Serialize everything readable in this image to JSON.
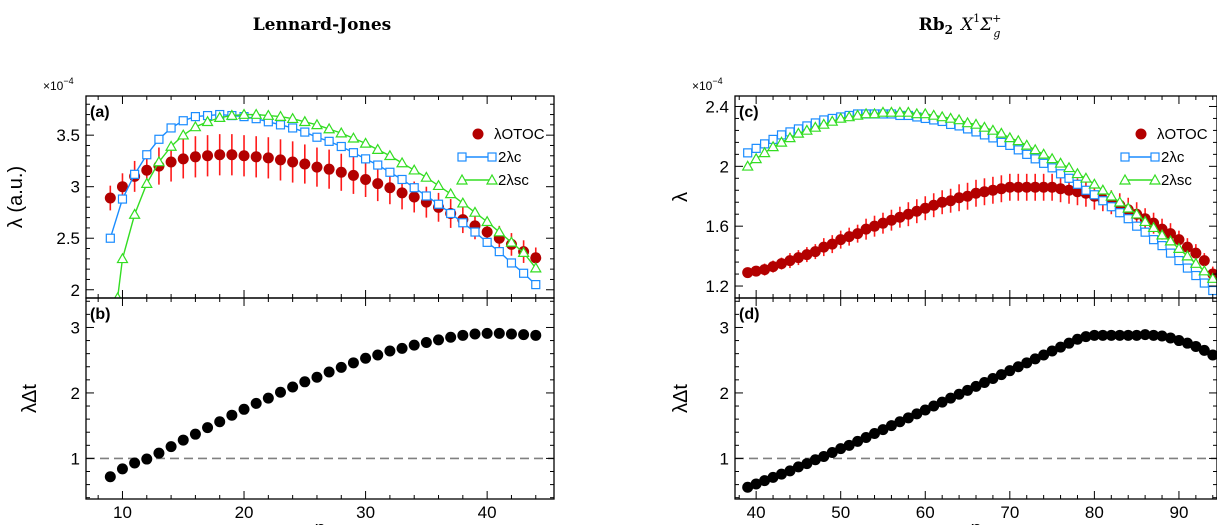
{
  "colors": {
    "otoc_fill": "#b30000",
    "otoc_err": "#ff1a1a",
    "lc": "#1a8cff",
    "lsc": "#33dd22",
    "ldt": "#000000",
    "ref": "#808080"
  },
  "chart_data": [
    {
      "id": "a",
      "type": "scatter",
      "panel_label": "(a)",
      "figure_title": "Lennard-Jones",
      "ylabel": "λ (a.u.)",
      "multiplier": "×10",
      "multiplier_exp": "−4",
      "xlim": [
        7,
        45.5
      ],
      "ylim": [
        1.92,
        3.88
      ],
      "xticks": [
        10,
        20,
        30,
        40
      ],
      "yticks": [
        2,
        2.5,
        3,
        3.5
      ],
      "ytick_labels": [
        "2",
        "2.5",
        "3",
        "3.5"
      ],
      "legend": [
        "λOTOC",
        "2λc",
        "2λsc"
      ],
      "series": [
        {
          "name": "λOTOC",
          "style": "otoc",
          "x": [
            9,
            10,
            11,
            12,
            13,
            14,
            15,
            16,
            17,
            18,
            19,
            20,
            21,
            22,
            23,
            24,
            25,
            26,
            27,
            28,
            29,
            30,
            31,
            32,
            33,
            34,
            35,
            36,
            37,
            38,
            39,
            40,
            41,
            42,
            43,
            44
          ],
          "y": [
            2.89,
            3.0,
            3.1,
            3.16,
            3.2,
            3.24,
            3.27,
            3.29,
            3.3,
            3.31,
            3.31,
            3.3,
            3.29,
            3.28,
            3.26,
            3.24,
            3.22,
            3.19,
            3.17,
            3.14,
            3.11,
            3.07,
            3.03,
            2.99,
            2.94,
            2.9,
            2.85,
            2.8,
            2.74,
            2.68,
            2.62,
            2.56,
            2.5,
            2.44,
            2.37,
            2.31
          ],
          "err": [
            0.12,
            0.13,
            0.15,
            0.17,
            0.18,
            0.19,
            0.19,
            0.2,
            0.2,
            0.2,
            0.2,
            0.2,
            0.2,
            0.2,
            0.2,
            0.2,
            0.19,
            0.19,
            0.19,
            0.18,
            0.18,
            0.17,
            0.17,
            0.16,
            0.16,
            0.15,
            0.15,
            0.14,
            0.14,
            0.13,
            0.13,
            0.12,
            0.12,
            0.11,
            0.11,
            0.1
          ]
        },
        {
          "name": "2λc",
          "style": "lc",
          "x": [
            9,
            10,
            11,
            12,
            13,
            14,
            15,
            16,
            17,
            18,
            19,
            20,
            21,
            22,
            23,
            24,
            25,
            26,
            27,
            28,
            29,
            30,
            31,
            32,
            33,
            34,
            35,
            36,
            37,
            38,
            39,
            40,
            41,
            42,
            43,
            44
          ],
          "y": [
            2.5,
            2.88,
            3.12,
            3.31,
            3.46,
            3.57,
            3.64,
            3.68,
            3.69,
            3.7,
            3.69,
            3.68,
            3.66,
            3.63,
            3.6,
            3.57,
            3.53,
            3.48,
            3.44,
            3.39,
            3.33,
            3.27,
            3.21,
            3.14,
            3.07,
            2.99,
            2.91,
            2.83,
            2.74,
            2.65,
            2.56,
            2.46,
            2.37,
            2.26,
            2.16,
            2.05
          ]
        },
        {
          "name": "2λsc",
          "style": "lsc",
          "x": [
            9.6,
            10,
            11,
            12,
            13,
            14,
            15,
            16,
            17,
            18,
            19,
            20,
            21,
            22,
            23,
            24,
            25,
            26,
            27,
            28,
            29,
            30,
            31,
            32,
            33,
            34,
            35,
            36,
            37,
            38,
            39,
            40,
            41,
            42,
            43,
            44
          ],
          "y": [
            1.92,
            2.3,
            2.73,
            3.03,
            3.24,
            3.39,
            3.5,
            3.58,
            3.63,
            3.67,
            3.69,
            3.7,
            3.7,
            3.69,
            3.68,
            3.66,
            3.63,
            3.6,
            3.56,
            3.52,
            3.47,
            3.42,
            3.36,
            3.3,
            3.23,
            3.16,
            3.09,
            3.01,
            2.93,
            2.84,
            2.75,
            2.66,
            2.56,
            2.46,
            2.36,
            2.21
          ]
        }
      ]
    },
    {
      "id": "b",
      "type": "scatter",
      "panel_label": "(b)",
      "xlabel": "n",
      "ylabel": "λΔt",
      "xlim": [
        7,
        45.5
      ],
      "ylim": [
        0.38,
        3.45
      ],
      "xticks": [
        10,
        20,
        30,
        40
      ],
      "yticks": [
        1,
        2,
        3
      ],
      "ytick_labels": [
        "1",
        "2",
        "3"
      ],
      "hline": 1,
      "series": [
        {
          "name": "λΔt",
          "style": "ldt",
          "x": [
            9,
            10,
            11,
            12,
            13,
            14,
            15,
            16,
            17,
            18,
            19,
            20,
            21,
            22,
            23,
            24,
            25,
            26,
            27,
            28,
            29,
            30,
            31,
            32,
            33,
            34,
            35,
            36,
            37,
            38,
            39,
            40,
            41,
            42,
            43,
            44
          ],
          "y": [
            0.72,
            0.84,
            0.93,
            0.99,
            1.08,
            1.18,
            1.28,
            1.37,
            1.47,
            1.56,
            1.66,
            1.75,
            1.84,
            1.92,
            2.01,
            2.09,
            2.17,
            2.24,
            2.32,
            2.39,
            2.46,
            2.53,
            2.58,
            2.64,
            2.68,
            2.73,
            2.77,
            2.81,
            2.85,
            2.88,
            2.9,
            2.91,
            2.91,
            2.9,
            2.89,
            2.88
          ]
        }
      ]
    },
    {
      "id": "c",
      "type": "scatter",
      "panel_label": "(c)",
      "figure_title_main": "Rb",
      "figure_title_sub": "2",
      "figure_title_state": "X",
      "figure_title_sup1": "1",
      "figure_title_sigma": "Σ",
      "figure_title_sup2": "+",
      "figure_title_sub2": "g",
      "ylabel": "λ",
      "multiplier": "×10",
      "multiplier_exp": "−4",
      "xlim": [
        37.5,
        94.5
      ],
      "ylim": [
        1.12,
        2.47
      ],
      "xticks": [
        40,
        50,
        60,
        70,
        80,
        90
      ],
      "yticks": [
        1.2,
        1.6,
        2,
        2.4
      ],
      "ytick_labels": [
        "1.2",
        "1.6",
        "2",
        "2.4"
      ],
      "legend": [
        "λOTOC",
        "2λc",
        "2λsc"
      ],
      "series": [
        {
          "name": "λOTOC",
          "style": "otoc",
          "x": [
            39,
            40,
            41,
            42,
            43,
            44,
            45,
            46,
            47,
            48,
            49,
            50,
            51,
            52,
            53,
            54,
            55,
            56,
            57,
            58,
            59,
            60,
            61,
            62,
            63,
            64,
            65,
            66,
            67,
            68,
            69,
            70,
            71,
            72,
            73,
            74,
            75,
            76,
            77,
            78,
            79,
            80,
            81,
            82,
            83,
            84,
            85,
            86,
            87,
            88,
            89,
            90,
            91,
            92,
            93,
            94
          ],
          "y": [
            1.29,
            1.3,
            1.31,
            1.33,
            1.35,
            1.37,
            1.39,
            1.41,
            1.43,
            1.46,
            1.48,
            1.51,
            1.53,
            1.55,
            1.58,
            1.6,
            1.62,
            1.64,
            1.66,
            1.68,
            1.7,
            1.72,
            1.74,
            1.76,
            1.77,
            1.79,
            1.8,
            1.82,
            1.83,
            1.84,
            1.85,
            1.86,
            1.86,
            1.86,
            1.86,
            1.86,
            1.86,
            1.85,
            1.84,
            1.83,
            1.82,
            1.8,
            1.78,
            1.76,
            1.74,
            1.71,
            1.68,
            1.65,
            1.62,
            1.58,
            1.55,
            1.51,
            1.46,
            1.42,
            1.37,
            1.28
          ],
          "err": [
            0.03,
            0.03,
            0.04,
            0.04,
            0.04,
            0.05,
            0.05,
            0.05,
            0.05,
            0.06,
            0.06,
            0.06,
            0.06,
            0.06,
            0.07,
            0.07,
            0.07,
            0.07,
            0.07,
            0.08,
            0.08,
            0.08,
            0.08,
            0.08,
            0.08,
            0.09,
            0.09,
            0.09,
            0.09,
            0.09,
            0.09,
            0.09,
            0.09,
            0.09,
            0.09,
            0.09,
            0.09,
            0.09,
            0.09,
            0.09,
            0.09,
            0.09,
            0.08,
            0.08,
            0.08,
            0.08,
            0.08,
            0.07,
            0.07,
            0.07,
            0.07,
            0.06,
            0.06,
            0.06,
            0.05,
            0.05
          ]
        },
        {
          "name": "2λc",
          "style": "lc",
          "x": [
            39,
            40,
            41,
            42,
            43,
            44,
            45,
            46,
            47,
            48,
            49,
            50,
            51,
            52,
            53,
            54,
            55,
            56,
            57,
            58,
            59,
            60,
            61,
            62,
            63,
            64,
            65,
            66,
            67,
            68,
            69,
            70,
            71,
            72,
            73,
            74,
            75,
            76,
            77,
            78,
            79,
            80,
            81,
            82,
            83,
            84,
            85,
            86,
            87,
            88,
            89,
            90,
            91,
            92,
            93,
            94
          ],
          "y": [
            2.09,
            2.12,
            2.15,
            2.18,
            2.21,
            2.23,
            2.25,
            2.27,
            2.29,
            2.31,
            2.32,
            2.33,
            2.34,
            2.35,
            2.35,
            2.35,
            2.35,
            2.35,
            2.34,
            2.34,
            2.33,
            2.32,
            2.31,
            2.3,
            2.28,
            2.27,
            2.25,
            2.23,
            2.21,
            2.19,
            2.16,
            2.14,
            2.11,
            2.08,
            2.05,
            2.02,
            1.99,
            1.95,
            1.92,
            1.88,
            1.84,
            1.81,
            1.77,
            1.73,
            1.69,
            1.65,
            1.6,
            1.56,
            1.51,
            1.47,
            1.42,
            1.37,
            1.32,
            1.27,
            1.22,
            1.17
          ]
        },
        {
          "name": "2λsc",
          "style": "lsc",
          "x": [
            39,
            40,
            41,
            42,
            43,
            44,
            45,
            46,
            47,
            48,
            49,
            50,
            51,
            52,
            53,
            54,
            55,
            56,
            57,
            58,
            59,
            60,
            61,
            62,
            63,
            64,
            65,
            66,
            67,
            68,
            69,
            70,
            71,
            72,
            73,
            74,
            75,
            76,
            77,
            78,
            79,
            80,
            81,
            82,
            83,
            84,
            85,
            86,
            87,
            88,
            89,
            90,
            91,
            92,
            93,
            94
          ],
          "y": [
            2.0,
            2.05,
            2.09,
            2.13,
            2.16,
            2.19,
            2.22,
            2.24,
            2.26,
            2.28,
            2.3,
            2.32,
            2.33,
            2.34,
            2.35,
            2.35,
            2.36,
            2.36,
            2.36,
            2.36,
            2.35,
            2.35,
            2.34,
            2.33,
            2.32,
            2.31,
            2.29,
            2.28,
            2.26,
            2.24,
            2.22,
            2.19,
            2.17,
            2.14,
            2.11,
            2.08,
            2.05,
            2.02,
            1.99,
            1.95,
            1.92,
            1.88,
            1.84,
            1.8,
            1.76,
            1.72,
            1.68,
            1.63,
            1.59,
            1.54,
            1.5,
            1.45,
            1.4,
            1.35,
            1.3,
            1.25
          ]
        }
      ]
    },
    {
      "id": "d",
      "type": "scatter",
      "panel_label": "(d)",
      "xlabel": "n",
      "ylabel": "λΔt",
      "xlim": [
        37.5,
        94.5
      ],
      "ylim": [
        0.38,
        3.45
      ],
      "xticks": [
        40,
        50,
        60,
        70,
        80,
        90
      ],
      "yticks": [
        1,
        2,
        3
      ],
      "ytick_labels": [
        "1",
        "2",
        "3"
      ],
      "hline": 1,
      "series": [
        {
          "name": "λΔt",
          "style": "ldt",
          "x": [
            39,
            40,
            41,
            42,
            43,
            44,
            45,
            46,
            47,
            48,
            49,
            50,
            51,
            52,
            53,
            54,
            55,
            56,
            57,
            58,
            59,
            60,
            61,
            62,
            63,
            64,
            65,
            66,
            67,
            68,
            69,
            70,
            71,
            72,
            73,
            74,
            75,
            76,
            77,
            78,
            79,
            80,
            81,
            82,
            83,
            84,
            85,
            86,
            87,
            88,
            89,
            90,
            91,
            92,
            93,
            94
          ],
          "y": [
            0.56,
            0.61,
            0.66,
            0.71,
            0.76,
            0.81,
            0.87,
            0.92,
            0.98,
            1.03,
            1.09,
            1.15,
            1.2,
            1.26,
            1.32,
            1.38,
            1.44,
            1.5,
            1.56,
            1.62,
            1.68,
            1.74,
            1.8,
            1.86,
            1.92,
            1.98,
            2.04,
            2.1,
            2.16,
            2.22,
            2.28,
            2.34,
            2.4,
            2.46,
            2.52,
            2.58,
            2.64,
            2.7,
            2.76,
            2.82,
            2.86,
            2.88,
            2.88,
            2.88,
            2.88,
            2.88,
            2.88,
            2.89,
            2.88,
            2.87,
            2.84,
            2.8,
            2.76,
            2.71,
            2.65,
            2.58
          ]
        }
      ]
    }
  ]
}
